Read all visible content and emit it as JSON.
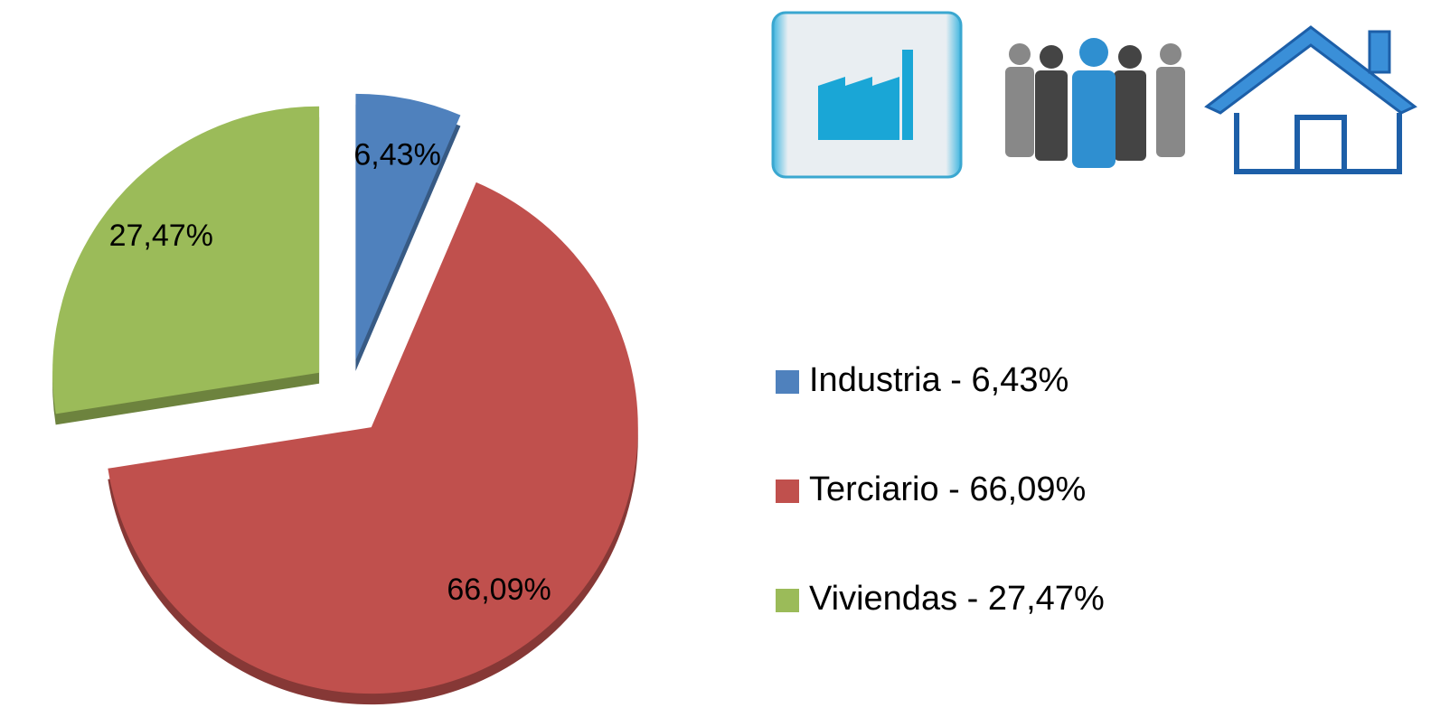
{
  "chart_data": {
    "type": "pie",
    "categories": [
      "Industria - 6,43%",
      "Terciario - 66,09%",
      "Viviendas - 27,47%"
    ],
    "values": [
      6.43,
      66.09,
      27.47
    ],
    "value_labels": [
      "6,43%",
      "66,09%",
      "27,47%"
    ],
    "colors": [
      "#4f81bd",
      "#c0504d",
      "#9bbb59"
    ],
    "legend": "right"
  }
}
